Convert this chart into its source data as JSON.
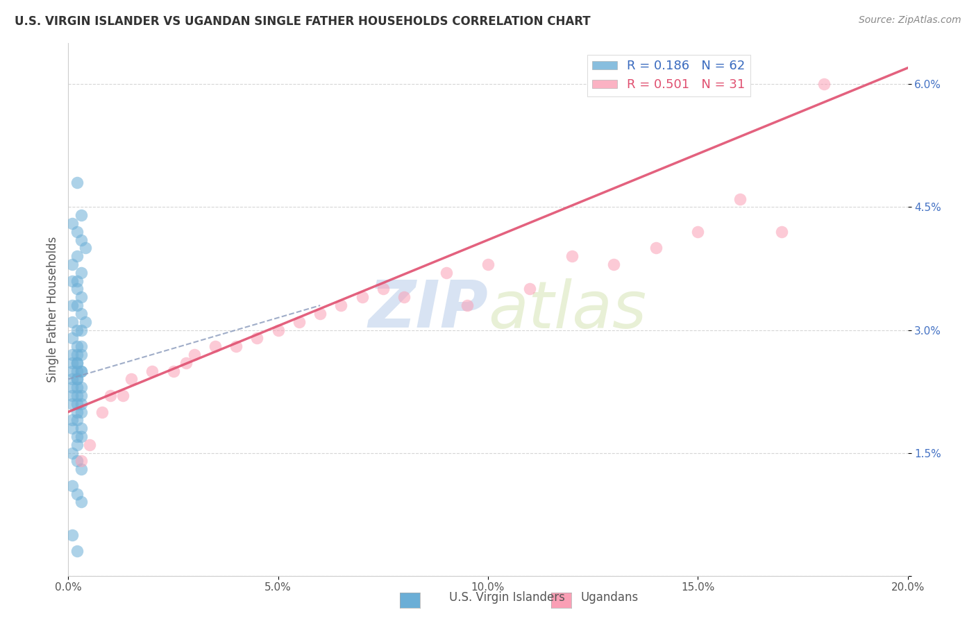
{
  "title": "U.S. VIRGIN ISLANDER VS UGANDAN SINGLE FATHER HOUSEHOLDS CORRELATION CHART",
  "source": "Source: ZipAtlas.com",
  "xlabel_vi": "U.S. Virgin Islanders",
  "xlabel_ug": "Ugandans",
  "ylabel": "Single Father Households",
  "xlim": [
    0.0,
    0.2
  ],
  "ylim": [
    0.0,
    0.065
  ],
  "xticks": [
    0.0,
    0.05,
    0.1,
    0.15,
    0.2
  ],
  "xtick_labels": [
    "0.0%",
    "5.0%",
    "10.0%",
    "15.0%",
    "20.0%"
  ],
  "yticks": [
    0.0,
    0.015,
    0.03,
    0.045,
    0.06
  ],
  "ytick_labels": [
    "",
    "1.5%",
    "3.0%",
    "4.5%",
    "6.0%"
  ],
  "r_vi": 0.186,
  "n_vi": 62,
  "r_ug": 0.501,
  "n_ug": 31,
  "color_vi": "#6baed6",
  "color_ug": "#fa9fb5",
  "trend_vi_color": "#3a6bbf",
  "trend_ug_color": "#e05070",
  "watermark_zip": "ZIP",
  "watermark_atlas": "atlas",
  "vi_x": [
    0.002,
    0.003,
    0.001,
    0.002,
    0.003,
    0.004,
    0.002,
    0.001,
    0.003,
    0.002,
    0.001,
    0.002,
    0.003,
    0.001,
    0.002,
    0.003,
    0.004,
    0.001,
    0.002,
    0.003,
    0.001,
    0.002,
    0.003,
    0.002,
    0.001,
    0.003,
    0.002,
    0.001,
    0.002,
    0.003,
    0.001,
    0.002,
    0.003,
    0.002,
    0.001,
    0.002,
    0.003,
    0.001,
    0.002,
    0.003,
    0.001,
    0.002,
    0.003,
    0.002,
    0.001,
    0.002,
    0.003,
    0.001,
    0.002,
    0.003,
    0.001,
    0.002,
    0.003,
    0.002,
    0.001,
    0.002,
    0.003,
    0.001,
    0.002,
    0.003,
    0.001,
    0.002
  ],
  "vi_y": [
    0.048,
    0.044,
    0.043,
    0.042,
    0.041,
    0.04,
    0.039,
    0.038,
    0.037,
    0.036,
    0.036,
    0.035,
    0.034,
    0.033,
    0.033,
    0.032,
    0.031,
    0.031,
    0.03,
    0.03,
    0.029,
    0.028,
    0.028,
    0.027,
    0.027,
    0.027,
    0.026,
    0.026,
    0.026,
    0.025,
    0.025,
    0.025,
    0.025,
    0.024,
    0.024,
    0.024,
    0.023,
    0.023,
    0.023,
    0.022,
    0.022,
    0.022,
    0.021,
    0.021,
    0.021,
    0.02,
    0.02,
    0.019,
    0.019,
    0.018,
    0.018,
    0.017,
    0.017,
    0.016,
    0.015,
    0.014,
    0.013,
    0.011,
    0.01,
    0.009,
    0.005,
    0.003
  ],
  "ug_x": [
    0.003,
    0.005,
    0.008,
    0.01,
    0.013,
    0.015,
    0.02,
    0.025,
    0.028,
    0.03,
    0.035,
    0.04,
    0.045,
    0.05,
    0.055,
    0.06,
    0.065,
    0.07,
    0.075,
    0.08,
    0.09,
    0.095,
    0.1,
    0.11,
    0.12,
    0.13,
    0.14,
    0.15,
    0.16,
    0.17,
    0.18
  ],
  "ug_y": [
    0.014,
    0.016,
    0.02,
    0.022,
    0.022,
    0.024,
    0.025,
    0.025,
    0.026,
    0.027,
    0.028,
    0.028,
    0.029,
    0.03,
    0.031,
    0.032,
    0.033,
    0.034,
    0.035,
    0.034,
    0.037,
    0.033,
    0.038,
    0.035,
    0.039,
    0.038,
    0.04,
    0.042,
    0.046,
    0.042,
    0.06
  ],
  "vi_trend_x": [
    0.0,
    0.06
  ],
  "vi_trend_y": [
    0.024,
    0.033
  ],
  "ug_trend_x": [
    0.0,
    0.2
  ],
  "ug_trend_y": [
    0.02,
    0.062
  ]
}
